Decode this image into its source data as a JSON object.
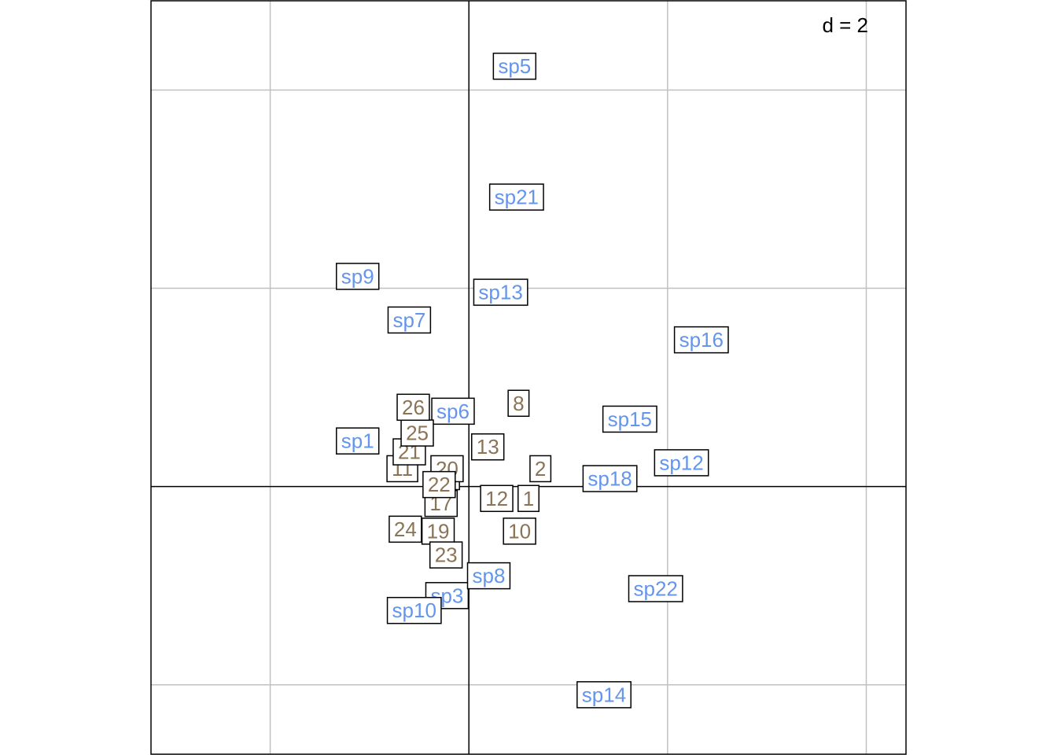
{
  "chart_data": {
    "type": "scatter",
    "title": "",
    "xlabel": "",
    "ylabel": "",
    "grid_step": 2,
    "grid_label": "d = 2",
    "grid": true,
    "xlim": [
      -3.2,
      4.4
    ],
    "ylim": [
      -2.7,
      4.9
    ],
    "colors": {
      "species": "#6495ed",
      "sites": "#8b7355",
      "grid": "#c0c0c0",
      "axis": "#000000",
      "frame": "#000000"
    },
    "series": [
      {
        "name": "species",
        "points": [
          {
            "label": "sp1",
            "x": -1.12,
            "y": 0.46
          },
          {
            "label": "sp3",
            "x": -0.22,
            "y": -1.1
          },
          {
            "label": "sp5",
            "x": 0.46,
            "y": 4.24
          },
          {
            "label": "sp6",
            "x": -0.16,
            "y": 0.76
          },
          {
            "label": "sp7",
            "x": -0.6,
            "y": 1.68
          },
          {
            "label": "sp8",
            "x": 0.2,
            "y": -0.9
          },
          {
            "label": "sp9",
            "x": -1.12,
            "y": 2.12
          },
          {
            "label": "sp10",
            "x": -0.55,
            "y": -1.25
          },
          {
            "label": "sp12",
            "x": 2.14,
            "y": 0.24
          },
          {
            "label": "sp13",
            "x": 0.32,
            "y": 1.96
          },
          {
            "label": "sp14",
            "x": 1.36,
            "y": -2.1
          },
          {
            "label": "sp15",
            "x": 1.62,
            "y": 0.68
          },
          {
            "label": "sp16",
            "x": 2.34,
            "y": 1.48
          },
          {
            "label": "sp18",
            "x": 1.42,
            "y": 0.08
          },
          {
            "label": "sp21",
            "x": 0.48,
            "y": 2.92
          },
          {
            "label": "sp22",
            "x": 1.88,
            "y": -1.03
          }
        ]
      },
      {
        "name": "sites",
        "points": [
          {
            "label": "1",
            "x": 0.6,
            "y": -0.12
          },
          {
            "label": "2",
            "x": 0.72,
            "y": 0.18
          },
          {
            "label": "5",
            "x": -0.2,
            "y": 0.1
          },
          {
            "label": "8",
            "x": 0.5,
            "y": 0.84
          },
          {
            "label": "10",
            "x": 0.51,
            "y": -0.45
          },
          {
            "label": "11",
            "x": -0.67,
            "y": 0.18
          },
          {
            "label": "12",
            "x": 0.28,
            "y": -0.12
          },
          {
            "label": "13",
            "x": 0.19,
            "y": 0.4
          },
          {
            "label": "17",
            "x": -0.28,
            "y": -0.17
          },
          {
            "label": "19",
            "x": -0.31,
            "y": -0.45
          },
          {
            "label": "20",
            "x": -0.22,
            "y": 0.18
          },
          {
            "label": "21",
            "x": -0.6,
            "y": 0.35
          },
          {
            "label": "22",
            "x": -0.3,
            "y": 0.02
          },
          {
            "label": "23",
            "x": -0.23,
            "y": -0.69
          },
          {
            "label": "24",
            "x": -0.64,
            "y": -0.43
          },
          {
            "label": "25",
            "x": -0.52,
            "y": 0.54
          },
          {
            "label": "26",
            "x": -0.56,
            "y": 0.8
          }
        ]
      }
    ]
  }
}
